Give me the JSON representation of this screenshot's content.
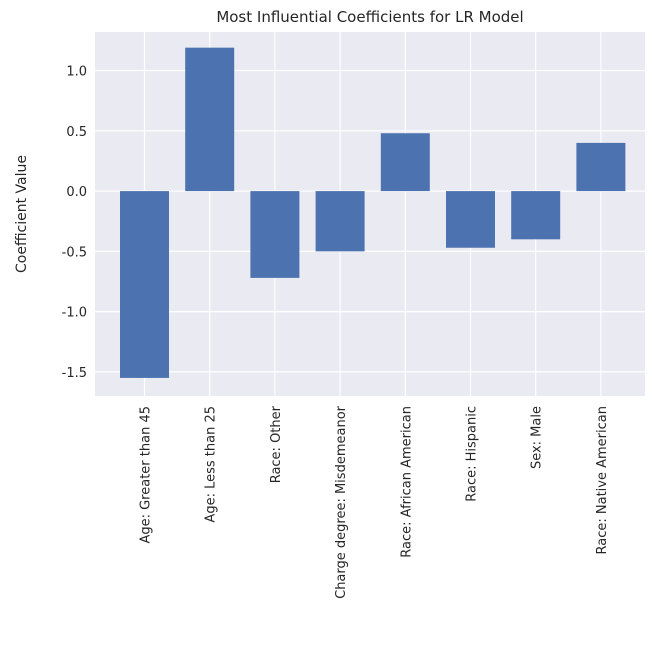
{
  "chart_data": {
    "type": "bar",
    "title": "Most Influential Coefficients for LR Model",
    "xlabel": "",
    "ylabel": "Coefficient Value",
    "categories": [
      "Age: Greater than 45",
      "Age: Less than 25",
      "Race: Other",
      "Charge degree: Misdemeanor",
      "Race: African American",
      "Race: Hispanic",
      "Sex: Male",
      "Race: Native American"
    ],
    "values": [
      -1.55,
      1.19,
      -0.72,
      -0.5,
      0.48,
      -0.47,
      -0.4,
      0.4
    ],
    "ylim": [
      -1.7,
      1.32
    ],
    "yticks": [
      -1.5,
      -1.0,
      -0.5,
      0.0,
      0.5,
      1.0
    ],
    "ytick_labels": [
      "-1.5",
      "-1.0",
      "-0.5",
      "0.0",
      "0.5",
      "1.0"
    ],
    "grid": true,
    "bar_color": "#4c72b0",
    "background_color": "#eaeaf2",
    "grid_color": "#ffffff"
  }
}
